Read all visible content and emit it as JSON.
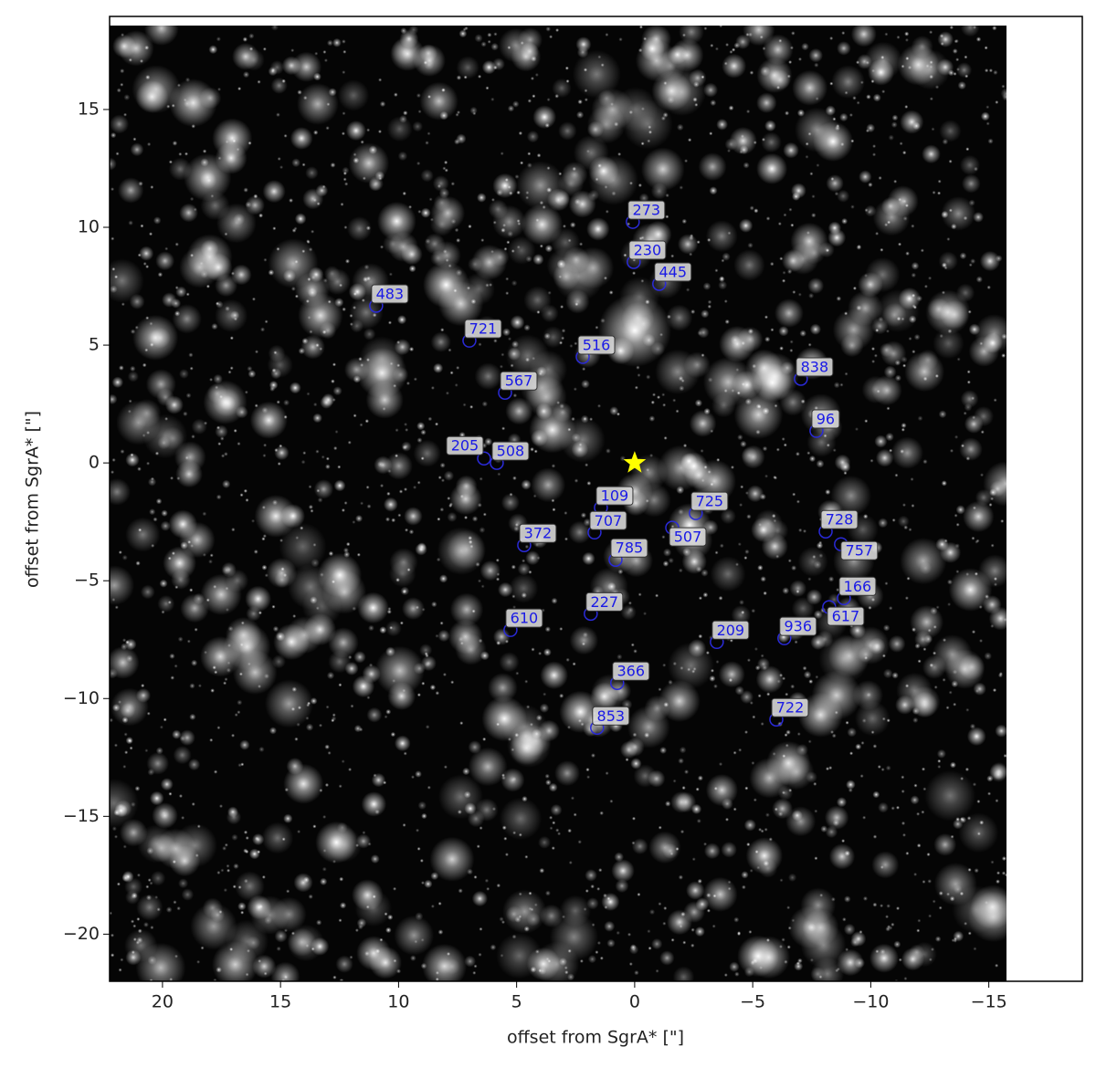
{
  "chart_data": {
    "type": "scatter",
    "xlabel": "offset from SgrA* [\"]",
    "ylabel": "offset from SgrA* [\"]",
    "xlim": [
      22.24,
      -18.96
    ],
    "ylim": [
      -22.0,
      18.95
    ],
    "xticks": [
      20,
      15,
      10,
      5,
      0,
      {
        "value": -5,
        "label": "−5"
      },
      {
        "value": -10,
        "label": "−10"
      },
      {
        "value": -15,
        "label": "−15"
      }
    ],
    "yticks": [
      {
        "value": -20,
        "label": "−20"
      },
      {
        "value": -15,
        "label": "−15"
      },
      {
        "value": -10,
        "label": "−10"
      },
      {
        "value": -5,
        "label": "−5"
      },
      0,
      5,
      10,
      15
    ],
    "marker_color": "#2a2ad8",
    "x": [
      0.08,
      0.04,
      -1.04,
      10.95,
      7.0,
      2.2,
      -7.04,
      5.49,
      -7.7,
      6.38,
      5.84,
      1.43,
      -2.59,
      1.7,
      -1.59,
      -8.09,
      -8.74,
      4.68,
      0.81,
      -8.86,
      -8.24,
      1.86,
      5.26,
      -3.48,
      -6.34,
      0.74,
      -6.0,
      1.59
    ],
    "y": [
      10.23,
      8.53,
      7.6,
      6.67,
      5.19,
      4.5,
      3.57,
      2.98,
      1.36,
      0.19,
      0.0,
      -1.9,
      -2.13,
      -2.95,
      -2.75,
      -2.91,
      -3.45,
      -3.49,
      -4.11,
      -5.74,
      -6.12,
      -6.4,
      -7.09,
      -7.6,
      -7.44,
      -9.34,
      -10.89,
      -11.24
    ],
    "labels": [
      "273",
      "230",
      "445",
      "483",
      "721",
      "516",
      "838",
      "567",
      "96",
      "205",
      "508",
      "109",
      "725",
      "707",
      "507",
      "728",
      "757",
      "372",
      "785",
      "166",
      "617",
      "227",
      "610",
      "209",
      "936",
      "366",
      "722",
      "853"
    ],
    "reference": {
      "x": 0,
      "y": 0,
      "color": "#ffff00"
    }
  }
}
